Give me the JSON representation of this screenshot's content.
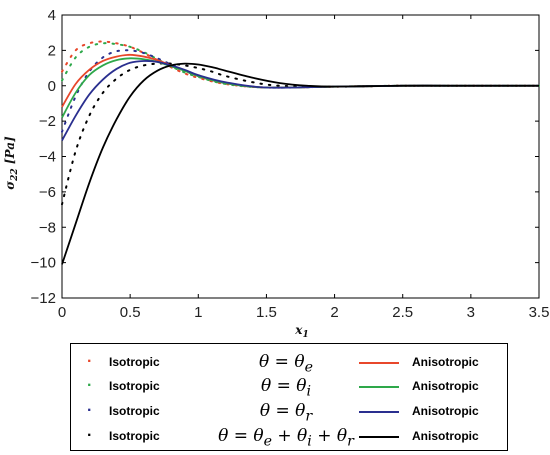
{
  "chart_data": {
    "type": "line",
    "title": "",
    "xlabel": "x₁",
    "ylabel": "σ₂₂ [Pa]",
    "xlim": [
      0,
      3.5
    ],
    "ylim": [
      -12,
      4
    ],
    "xticks": [
      "0",
      "0.5",
      "1",
      "1.5",
      "2",
      "2.5",
      "3",
      "3.5"
    ],
    "yticks": [
      "4",
      "2",
      "0",
      "−2",
      "−4",
      "−6",
      "−8",
      "−10",
      "−12"
    ],
    "grid": false,
    "legend_position": "below plot",
    "series": [
      {
        "name": "Isotropic",
        "condition": "θ = θe",
        "style": "dotted",
        "color": "#e8472b",
        "x": [
          0,
          0.1,
          0.2,
          0.3,
          0.4,
          0.5,
          0.6,
          0.7,
          0.8,
          0.9,
          1.0,
          1.2,
          1.5,
          2.0,
          2.5,
          3.0,
          3.5
        ],
        "y": [
          0.8,
          2.0,
          2.4,
          2.5,
          2.4,
          2.2,
          1.85,
          1.45,
          1.05,
          0.7,
          0.45,
          0.1,
          -0.1,
          -0.05,
          0,
          0,
          0
        ]
      },
      {
        "name": "Isotropic",
        "condition": "θ = θi",
        "style": "dotted",
        "color": "#2ea84a",
        "x": [
          0,
          0.1,
          0.2,
          0.3,
          0.4,
          0.5,
          0.6,
          0.7,
          0.8,
          0.9,
          1.0,
          1.2,
          1.5,
          2.0,
          2.5,
          3.0,
          3.5
        ],
        "y": [
          0.3,
          1.6,
          2.2,
          2.4,
          2.35,
          2.2,
          1.9,
          1.5,
          1.1,
          0.75,
          0.5,
          0.1,
          -0.1,
          -0.05,
          0,
          0,
          0
        ]
      },
      {
        "name": "Isotropic",
        "condition": "θ = θr",
        "style": "dotted",
        "color": "#2a2f8f",
        "x": [
          0,
          0.1,
          0.2,
          0.3,
          0.4,
          0.5,
          0.6,
          0.7,
          0.8,
          0.9,
          1.0,
          1.2,
          1.5,
          2.0,
          2.5,
          3.0,
          3.5
        ],
        "y": [
          -2.6,
          -0.6,
          0.8,
          1.6,
          1.95,
          2.0,
          1.85,
          1.55,
          1.2,
          0.85,
          0.55,
          0.15,
          -0.1,
          -0.05,
          0,
          0,
          0
        ]
      },
      {
        "name": "Isotropic",
        "condition": "θ = θe + θi + θr",
        "style": "dotted",
        "color": "#000000",
        "x": [
          0,
          0.1,
          0.2,
          0.3,
          0.4,
          0.5,
          0.6,
          0.7,
          0.8,
          0.9,
          1.0,
          1.1,
          1.2,
          1.4,
          1.6,
          2.0,
          2.5,
          3.0,
          3.5
        ],
        "y": [
          -6.7,
          -3.7,
          -1.7,
          -0.4,
          0.4,
          0.9,
          1.15,
          1.25,
          1.25,
          1.15,
          1.0,
          0.8,
          0.55,
          0.2,
          0.0,
          -0.05,
          0,
          0,
          0
        ]
      },
      {
        "name": "Anisotropic",
        "condition": "θ = θe",
        "style": "solid",
        "color": "#e8472b",
        "x": [
          0,
          0.1,
          0.2,
          0.3,
          0.4,
          0.5,
          0.6,
          0.7,
          0.8,
          0.9,
          1.0,
          1.2,
          1.5,
          2.0,
          2.5,
          3.0,
          3.5
        ],
        "y": [
          -1.2,
          0.1,
          0.9,
          1.4,
          1.65,
          1.75,
          1.65,
          1.45,
          1.15,
          0.85,
          0.55,
          0.15,
          -0.1,
          -0.05,
          0,
          0,
          0
        ]
      },
      {
        "name": "Anisotropic",
        "condition": "θ = θi",
        "style": "solid",
        "color": "#2ea84a",
        "x": [
          0,
          0.1,
          0.2,
          0.3,
          0.4,
          0.5,
          0.6,
          0.7,
          0.8,
          0.9,
          1.0,
          1.2,
          1.5,
          2.0,
          2.5,
          3.0,
          3.5
        ],
        "y": [
          -1.8,
          -0.4,
          0.6,
          1.15,
          1.45,
          1.55,
          1.5,
          1.35,
          1.1,
          0.85,
          0.55,
          0.15,
          -0.1,
          -0.05,
          0,
          0,
          0
        ]
      },
      {
        "name": "Anisotropic",
        "condition": "θ = θr",
        "style": "solid",
        "color": "#2a2f8f",
        "x": [
          0,
          0.1,
          0.2,
          0.3,
          0.4,
          0.5,
          0.6,
          0.7,
          0.8,
          0.9,
          1.0,
          1.2,
          1.5,
          2.0,
          2.5,
          3.0,
          3.5
        ],
        "y": [
          -3.1,
          -1.7,
          -0.5,
          0.35,
          0.95,
          1.3,
          1.4,
          1.35,
          1.15,
          0.9,
          0.6,
          0.2,
          -0.1,
          -0.05,
          0,
          0,
          0
        ]
      },
      {
        "name": "Anisotropic",
        "condition": "θ = θe + θi + θr",
        "style": "solid",
        "color": "#000000",
        "x": [
          0,
          0.1,
          0.2,
          0.3,
          0.4,
          0.5,
          0.6,
          0.7,
          0.8,
          0.9,
          1.0,
          1.1,
          1.2,
          1.4,
          1.6,
          1.8,
          2.0,
          2.5,
          3.0,
          3.5
        ],
        "y": [
          -10.1,
          -7.8,
          -5.5,
          -3.5,
          -1.9,
          -0.6,
          0.3,
          0.85,
          1.15,
          1.25,
          1.2,
          1.05,
          0.85,
          0.45,
          0.15,
          0.0,
          -0.05,
          0,
          0,
          0
        ]
      }
    ]
  },
  "legend": {
    "rows": [
      {
        "iso_label": "Isotropic",
        "theta": "θ = θ<sub>e</sub>",
        "aniso_label": "Anisotropic",
        "color": "#e8472b"
      },
      {
        "iso_label": "Isotropic",
        "theta": "θ = θ<sub>i</sub>",
        "aniso_label": "Anisotropic",
        "color": "#2ea84a"
      },
      {
        "iso_label": "Isotropic",
        "theta": "θ = θ<sub>r</sub>",
        "aniso_label": "Anisotropic",
        "color": "#2a2f8f"
      },
      {
        "iso_label": "Isotropic",
        "theta": "θ = θ<sub>e</sub> + θ<sub>i</sub> + θ<sub>r</sub>",
        "aniso_label": "Anisotropic",
        "color": "#000000"
      }
    ]
  }
}
